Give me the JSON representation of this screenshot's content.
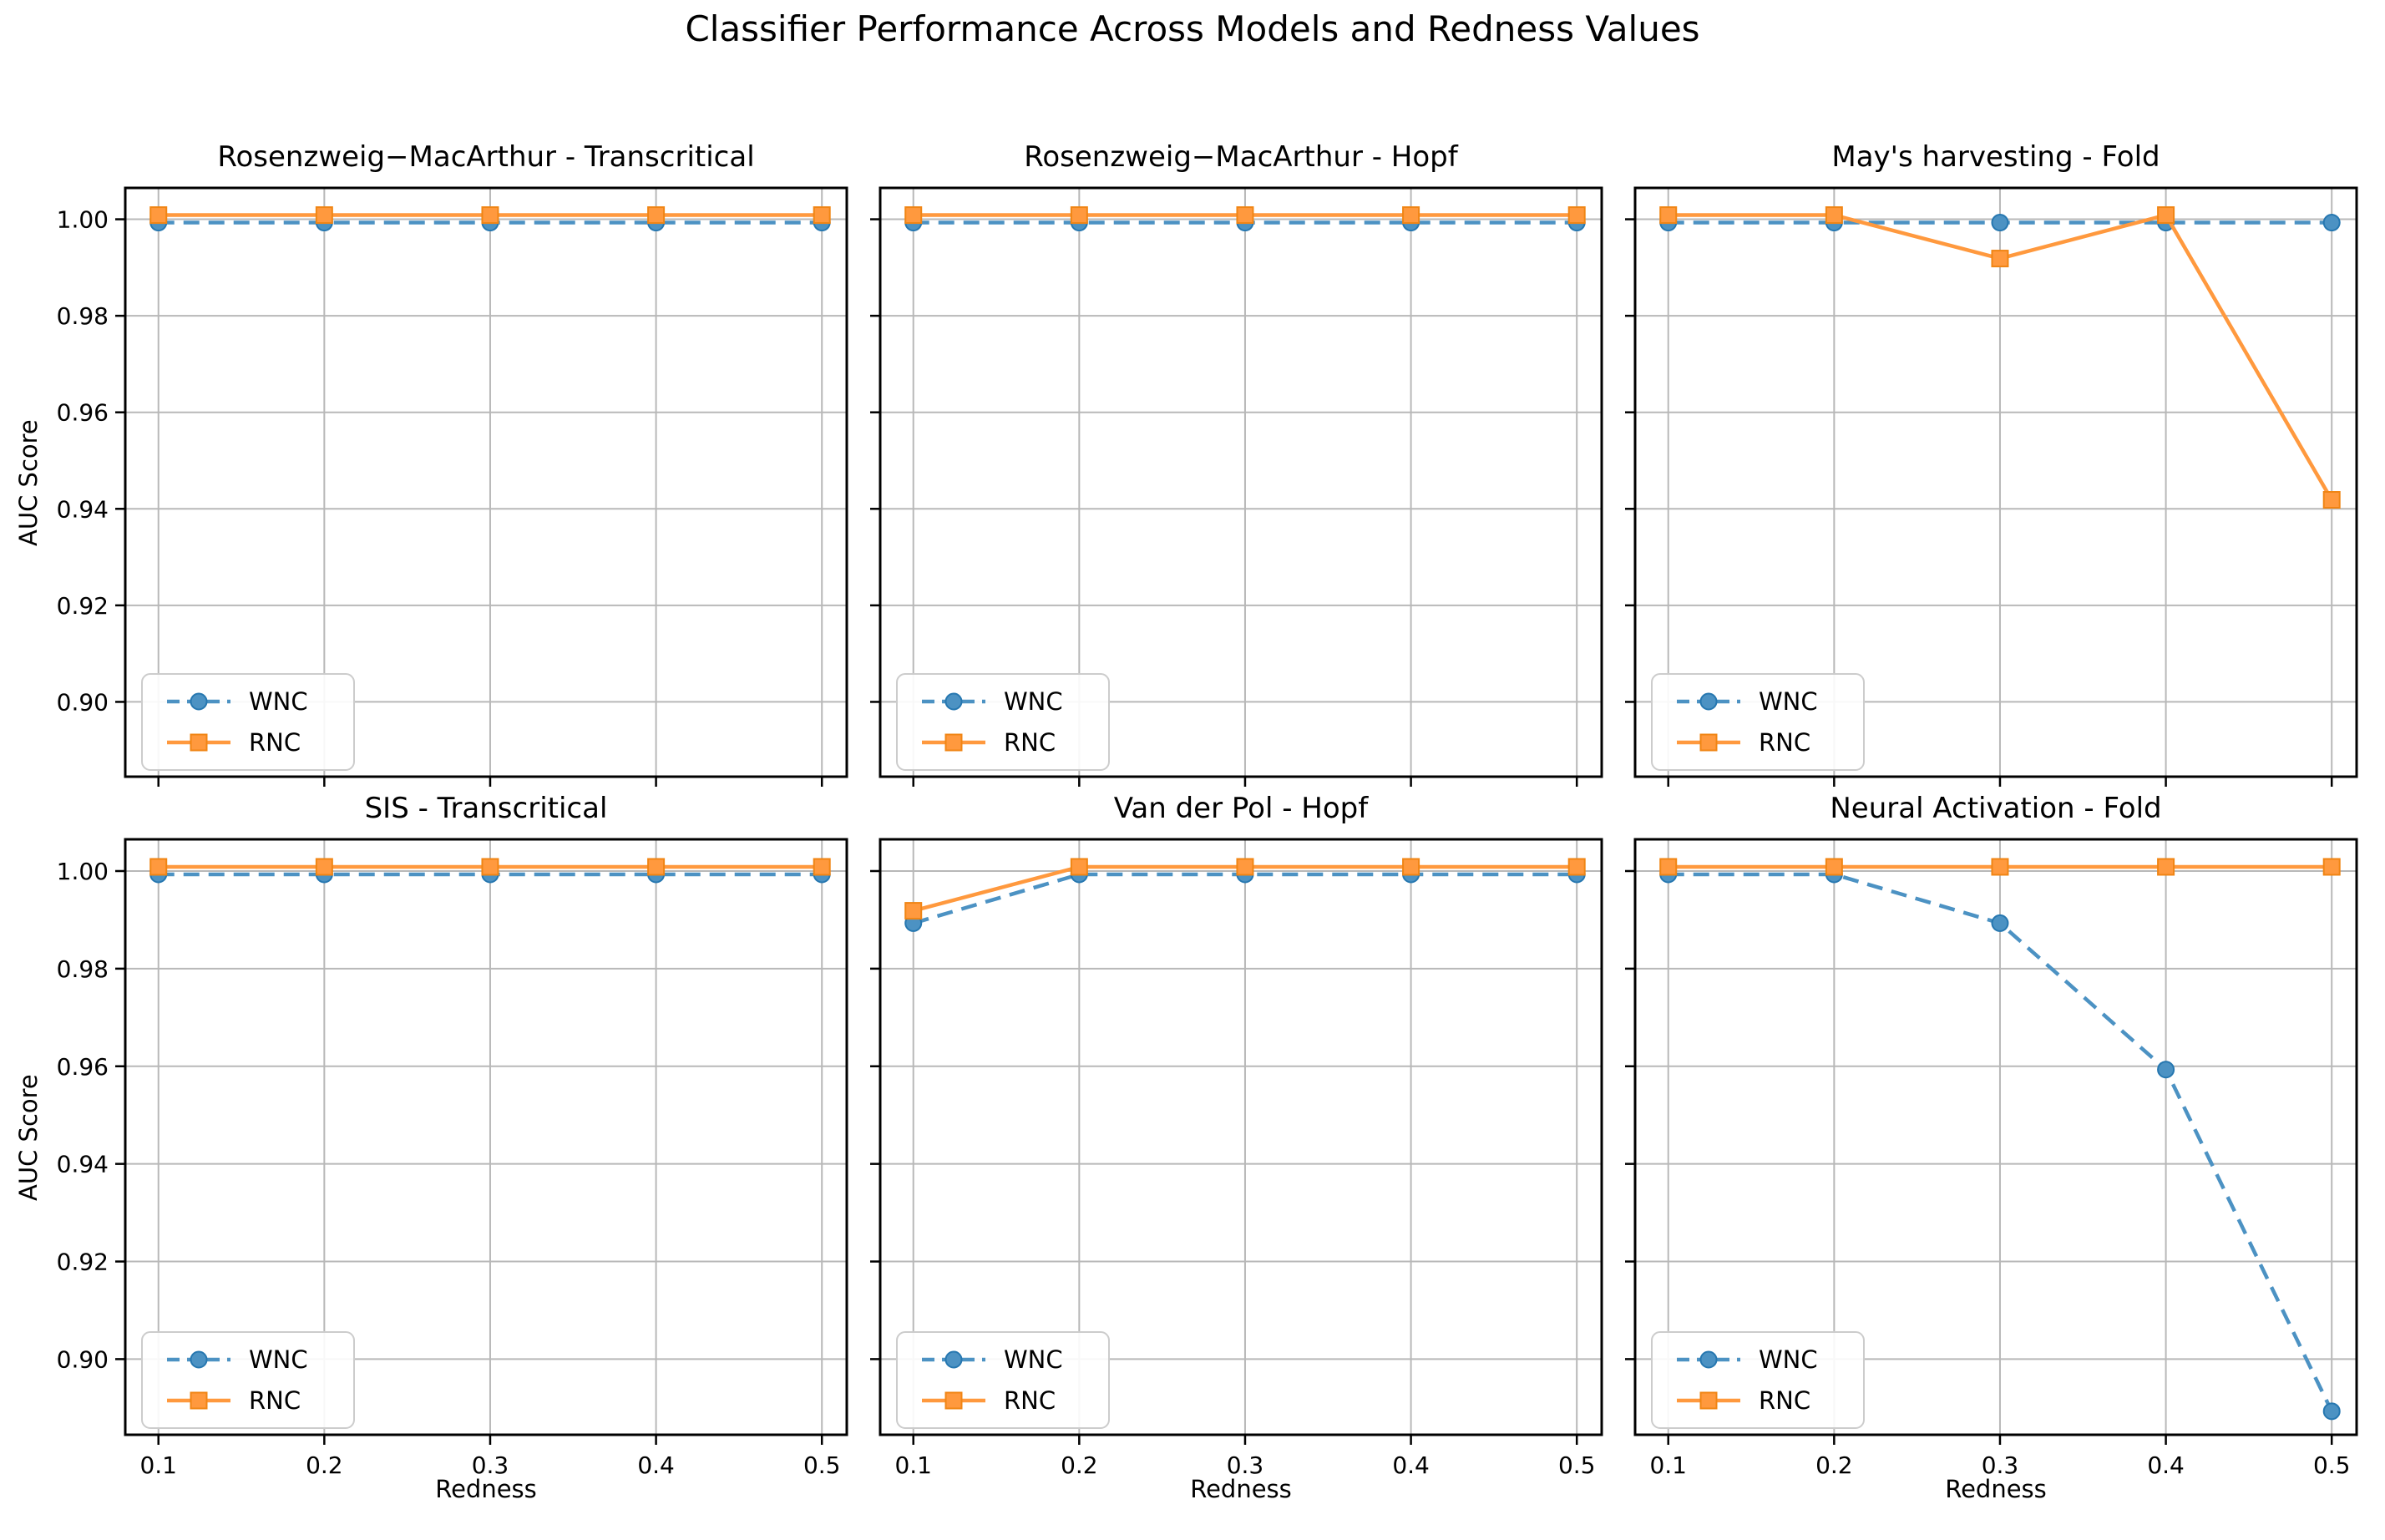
{
  "suptitle": "Classifier Performance Across Models and Redness Values",
  "axes": {
    "xlabel": "Redness",
    "ylabel": "AUC Score",
    "xticks": [
      0.1,
      0.2,
      0.3,
      0.4,
      0.5
    ],
    "xticklabels": [
      "0.1",
      "0.2",
      "0.3",
      "0.4",
      "0.5"
    ],
    "yticks": [
      0.9,
      0.92,
      0.94,
      0.96,
      0.98,
      1.0
    ],
    "yticklabels": [
      "0.90",
      "0.92",
      "0.94",
      "0.96",
      "0.98",
      "1.00"
    ],
    "xlim": [
      0.08,
      0.515
    ],
    "ylim": [
      0.8845,
      1.0065
    ],
    "grid": true,
    "legend_position": "lower left"
  },
  "legend": {
    "entries": [
      "WNC",
      "RNC"
    ]
  },
  "colors": {
    "wnc": "#4C92C3",
    "wnc_edge": "#2677B0",
    "rnc": "#FF993E",
    "rnc_edge": "#F08514",
    "grid": "#b8b8b8",
    "spine": "#000000",
    "legend_border": "#cccccc",
    "background": "#ffffff",
    "text": "#000000"
  },
  "chart_data": [
    {
      "type": "line",
      "title": "Rosenzweig−MacArthur - Transcritical",
      "ylabel": "AUC Score",
      "x": [
        0.1,
        0.2,
        0.3,
        0.4,
        0.5
      ],
      "series": [
        {
          "name": "WNC",
          "style": "dashed",
          "marker": "circle",
          "values": [
            1.0,
            1.0,
            1.0,
            1.0,
            1.0
          ]
        },
        {
          "name": "RNC",
          "style": "solid",
          "marker": "square",
          "values": [
            1.0,
            1.0,
            1.0,
            1.0,
            1.0
          ]
        }
      ]
    },
    {
      "type": "line",
      "title": "Rosenzweig−MacArthur - Hopf",
      "x": [
        0.1,
        0.2,
        0.3,
        0.4,
        0.5
      ],
      "series": [
        {
          "name": "WNC",
          "style": "dashed",
          "marker": "circle",
          "values": [
            1.0,
            1.0,
            1.0,
            1.0,
            1.0
          ]
        },
        {
          "name": "RNC",
          "style": "solid",
          "marker": "square",
          "values": [
            1.0,
            1.0,
            1.0,
            1.0,
            1.0
          ]
        }
      ]
    },
    {
      "type": "line",
      "title": "May's harvesting - Fold",
      "x": [
        0.1,
        0.2,
        0.3,
        0.4,
        0.5
      ],
      "series": [
        {
          "name": "WNC",
          "style": "dashed",
          "marker": "circle",
          "values": [
            1.0,
            1.0,
            1.0,
            1.0,
            1.0
          ]
        },
        {
          "name": "RNC",
          "style": "solid",
          "marker": "square",
          "values": [
            1.0,
            1.0,
            0.991,
            1.0,
            0.941
          ]
        }
      ]
    },
    {
      "type": "line",
      "title": "SIS - Transcritical",
      "xlabel": "Redness",
      "ylabel": "AUC Score",
      "x": [
        0.1,
        0.2,
        0.3,
        0.4,
        0.5
      ],
      "series": [
        {
          "name": "WNC",
          "style": "dashed",
          "marker": "circle",
          "values": [
            1.0,
            1.0,
            1.0,
            1.0,
            1.0
          ]
        },
        {
          "name": "RNC",
          "style": "solid",
          "marker": "square",
          "values": [
            1.0,
            1.0,
            1.0,
            1.0,
            1.0
          ]
        }
      ]
    },
    {
      "type": "line",
      "title": "Van der Pol - Hopf",
      "xlabel": "Redness",
      "x": [
        0.1,
        0.2,
        0.3,
        0.4,
        0.5
      ],
      "series": [
        {
          "name": "WNC",
          "style": "dashed",
          "marker": "circle",
          "values": [
            0.99,
            1.0,
            1.0,
            1.0,
            1.0
          ]
        },
        {
          "name": "RNC",
          "style": "solid",
          "marker": "square",
          "values": [
            0.991,
            1.0,
            1.0,
            1.0,
            1.0
          ]
        }
      ]
    },
    {
      "type": "line",
      "title": "Neural Activation - Fold",
      "xlabel": "Redness",
      "x": [
        0.1,
        0.2,
        0.3,
        0.4,
        0.5
      ],
      "series": [
        {
          "name": "WNC",
          "style": "dashed",
          "marker": "circle",
          "values": [
            1.0,
            1.0,
            0.99,
            0.96,
            0.89
          ]
        },
        {
          "name": "RNC",
          "style": "solid",
          "marker": "square",
          "values": [
            1.0,
            1.0,
            1.0,
            1.0,
            1.0
          ]
        }
      ]
    }
  ]
}
